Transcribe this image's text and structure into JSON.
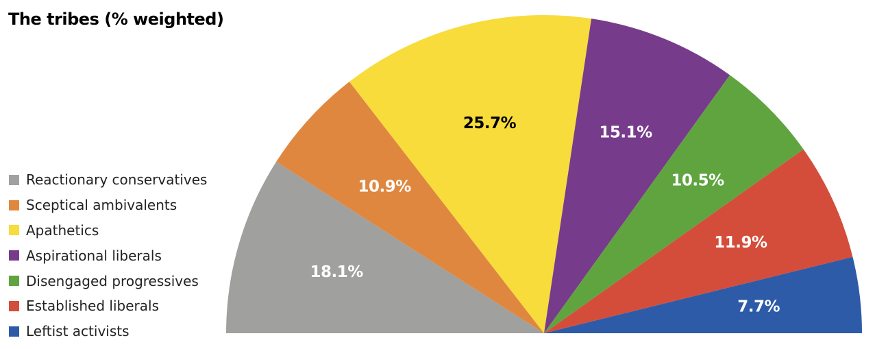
{
  "chart_data": {
    "type": "pie",
    "variant": "semicircle",
    "title": "The tribes (% weighted)",
    "legend_position": "left",
    "slices": [
      {
        "name": "Reactionary conservatives",
        "value": 18.1,
        "label": "18.1%",
        "color": "#A0A09E",
        "label_color": "#FFFFFF"
      },
      {
        "name": "Sceptical ambivalents",
        "value": 10.9,
        "label": "10.9%",
        "color": "#E0873F",
        "label_color": "#FFFFFF"
      },
      {
        "name": "Apathetics",
        "value": 25.7,
        "label": "25.7%",
        "color": "#F7DC3C",
        "label_color": "#000000"
      },
      {
        "name": "Aspirational liberals",
        "value": 15.1,
        "label": "15.1%",
        "color": "#773B8C",
        "label_color": "#FFFFFF"
      },
      {
        "name": "Disengaged progressives",
        "value": 10.5,
        "label": "10.5%",
        "color": "#5FA43F",
        "label_color": "#FFFFFF"
      },
      {
        "name": "Established liberals",
        "value": 11.9,
        "label": "11.9%",
        "color": "#D44D3B",
        "label_color": "#FFFFFF"
      },
      {
        "name": "Leftist activists",
        "value": 7.7,
        "label": "7.7%",
        "color": "#2D5BA8",
        "label_color": "#FFFFFF"
      }
    ]
  }
}
